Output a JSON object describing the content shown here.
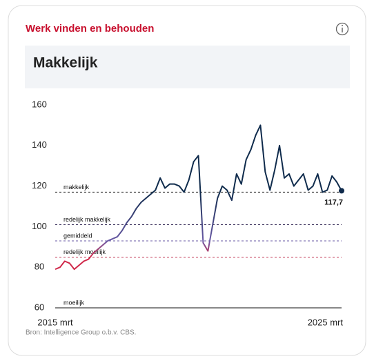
{
  "header": {
    "title": "Werk vinden en behouden"
  },
  "status": "Makkelijk",
  "source": "Bron: Intelligence Group o.b.v. CBS.",
  "chart_data": {
    "type": "line",
    "categories": [
      "2015 mrt",
      null,
      null,
      null,
      null,
      null,
      null,
      null,
      null,
      null,
      null,
      null,
      null,
      null,
      null,
      null,
      null,
      null,
      null,
      null,
      null,
      null,
      null,
      null,
      null,
      null,
      null,
      null,
      null,
      null,
      null,
      null,
      null,
      null,
      null,
      null,
      null,
      null,
      null,
      null,
      null,
      null,
      null,
      null,
      null,
      null,
      null,
      null,
      null,
      null,
      null,
      null,
      null,
      null,
      null,
      null,
      null,
      null,
      null,
      null,
      "2025 mrt"
    ],
    "series": [
      {
        "gradient_colors": [
          "#d0284a",
          "#6a5aa6",
          "#0f2b4c"
        ],
        "values": [
          79,
          80,
          83,
          82,
          79,
          81,
          83,
          84,
          87,
          89,
          91,
          93,
          94,
          95,
          98,
          102,
          105,
          109,
          112,
          114,
          116,
          118,
          124,
          119,
          121,
          121,
          120,
          117,
          123,
          132,
          135,
          92,
          88,
          101,
          114,
          120,
          118,
          113,
          126,
          121,
          133,
          138,
          145,
          150,
          127,
          118,
          128,
          140,
          124,
          126,
          120,
          123,
          126,
          118,
          120,
          126,
          117,
          118,
          125,
          122,
          117.7
        ],
        "value_labels": [
          null,
          null,
          null,
          null,
          null,
          null,
          null,
          null,
          null,
          null,
          null,
          null,
          null,
          null,
          null,
          null,
          null,
          null,
          null,
          null,
          null,
          null,
          null,
          null,
          null,
          null,
          null,
          null,
          null,
          null,
          null,
          null,
          null,
          null,
          null,
          null,
          null,
          null,
          null,
          null,
          null,
          null,
          null,
          null,
          null,
          null,
          null,
          null,
          null,
          null,
          null,
          null,
          null,
          null,
          null,
          null,
          null,
          null,
          null,
          null,
          "117,7"
        ]
      }
    ],
    "reference_lines": [
      {
        "label": "makkelijk",
        "value": 117,
        "color": "#222222",
        "dash": true
      },
      {
        "label": "redelijk makkelijk",
        "value": 101,
        "color": "#3a2f5a",
        "dash": true
      },
      {
        "label": "gemiddeld",
        "value": 93,
        "color": "#6a5aa6",
        "dash": true
      },
      {
        "label": "redelijk moeilijk",
        "value": 85,
        "color": "#c0304e",
        "dash": true
      },
      {
        "label": "moeilijk",
        "value": 60,
        "color": "#111111",
        "dash": false
      }
    ],
    "ylim": [
      60,
      160
    ],
    "yticks": [
      60,
      80,
      100,
      120,
      140,
      160
    ],
    "grid": false
  }
}
